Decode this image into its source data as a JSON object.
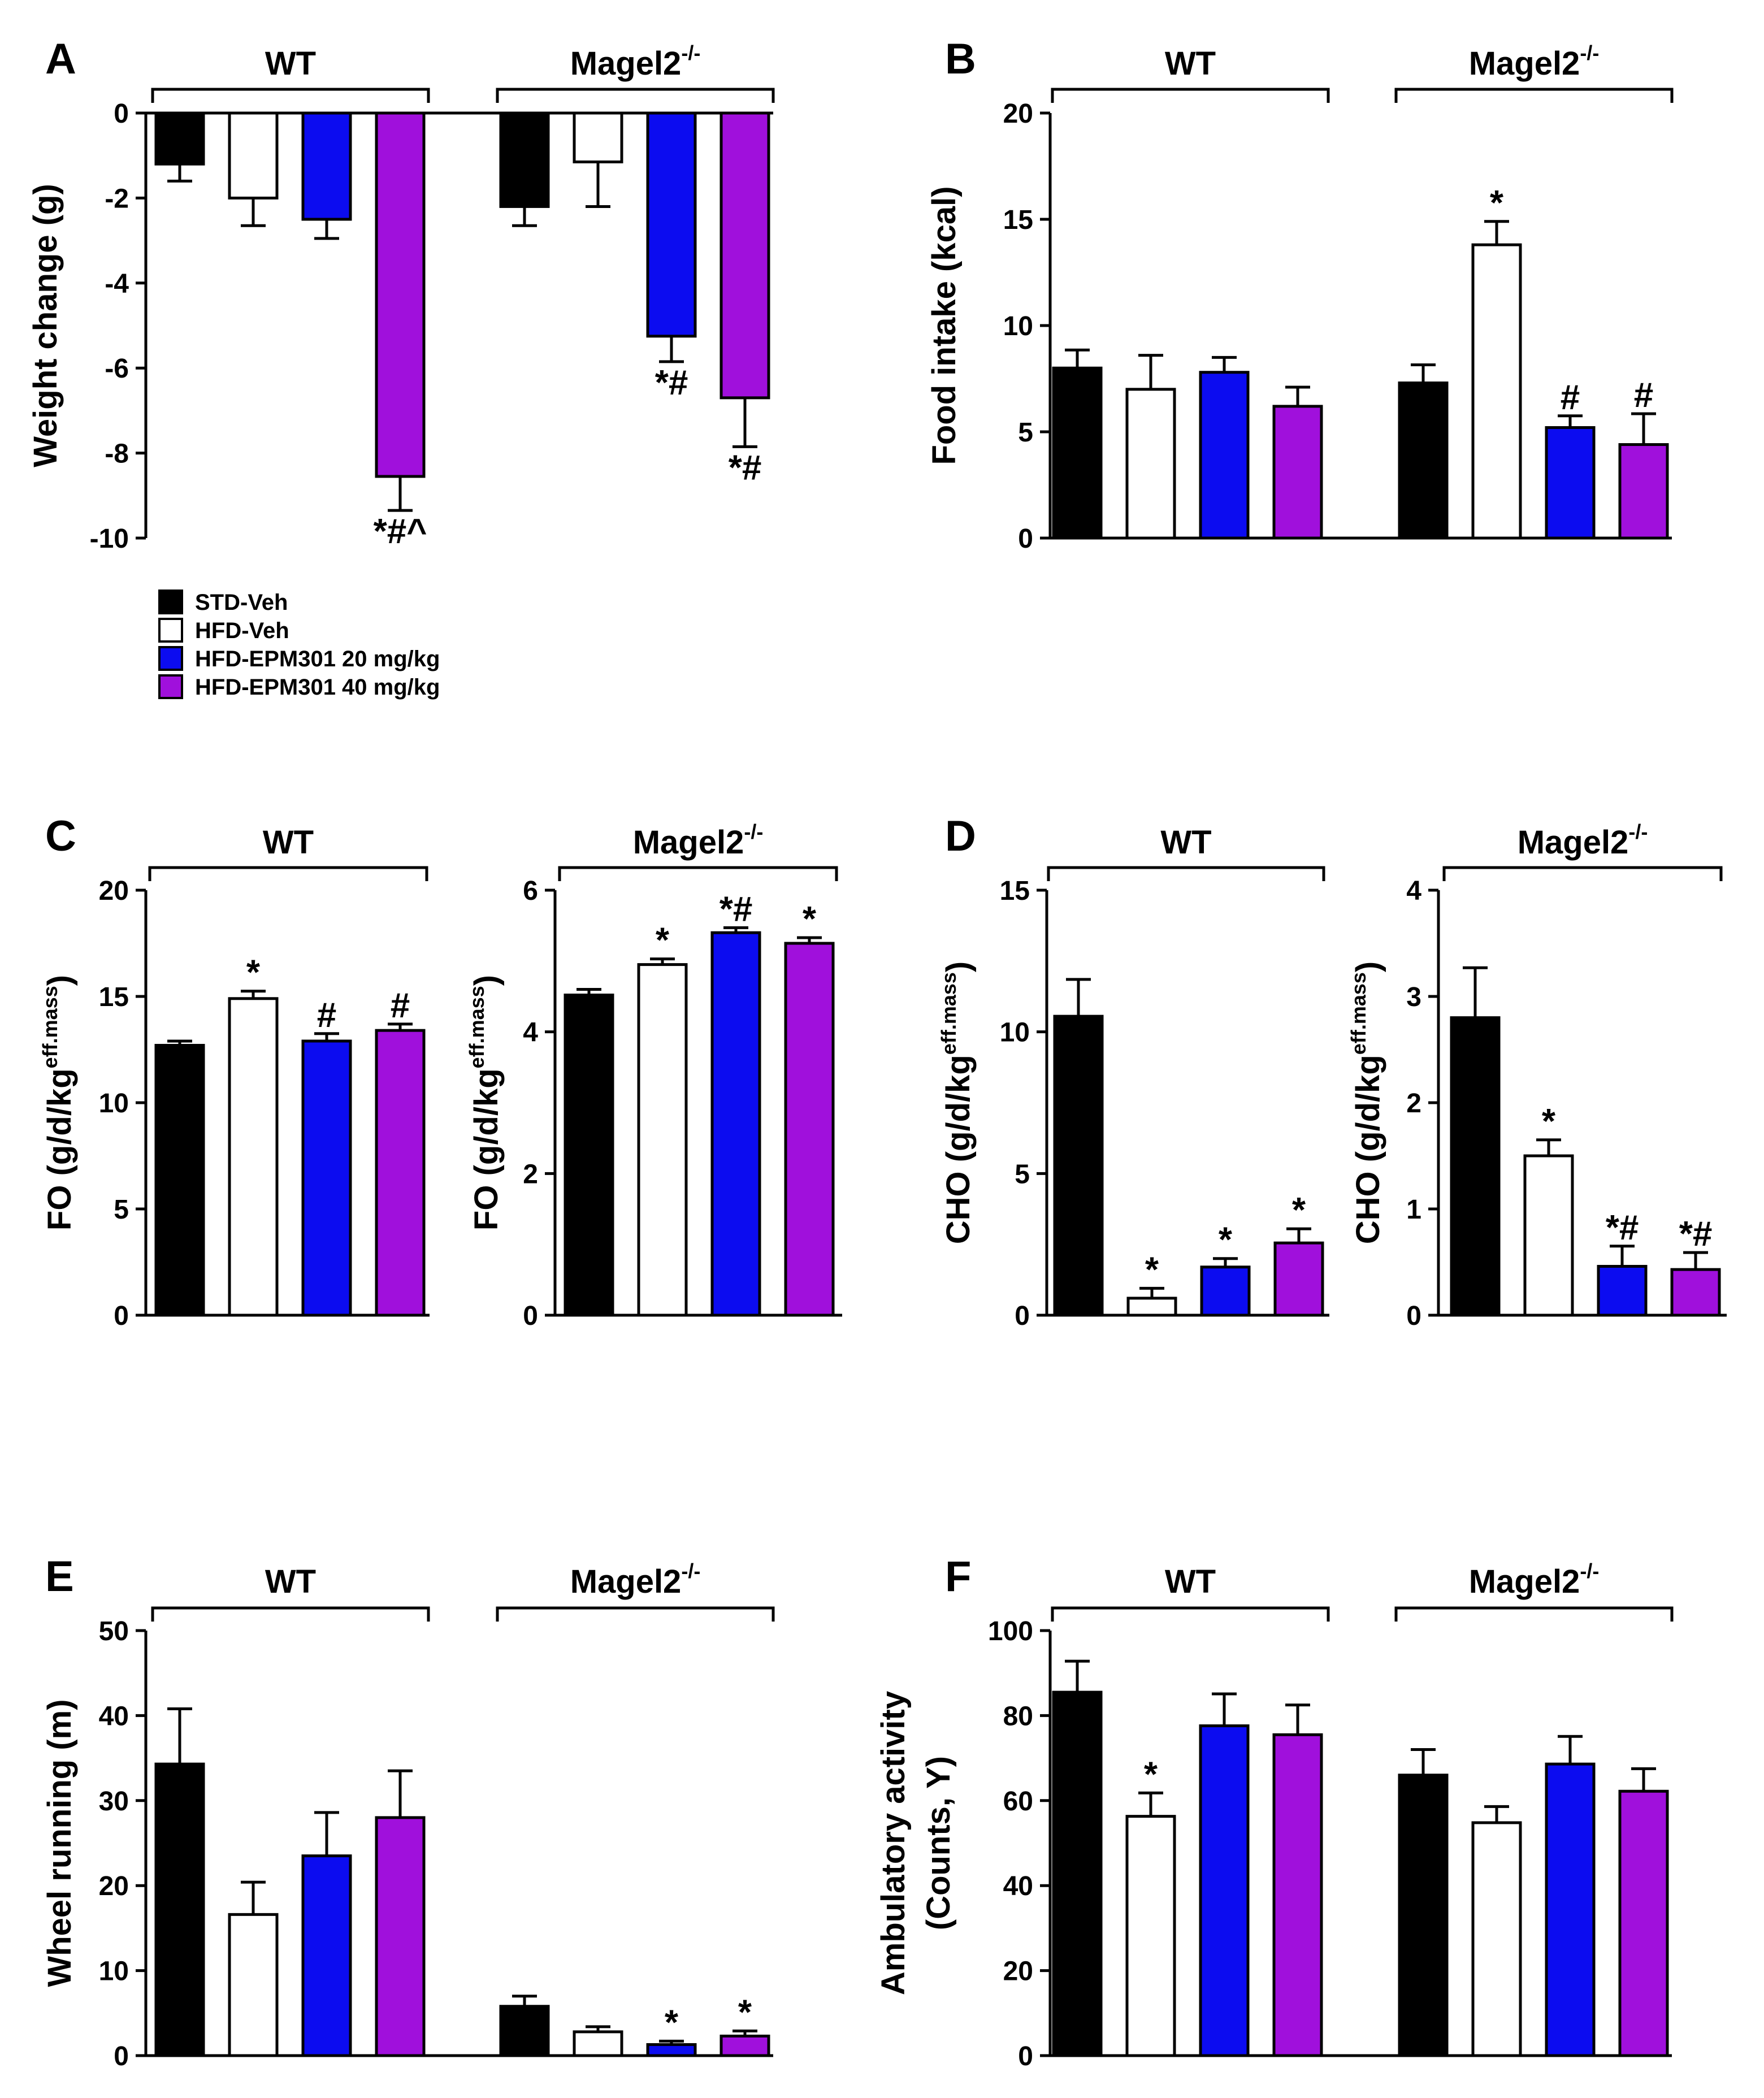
{
  "colors": {
    "black": "#000000",
    "white": "#ffffff",
    "blue": "#0c0cf0",
    "purple": "#a010dc"
  },
  "legend": [
    {
      "label": "STD-Veh",
      "color": "#000000"
    },
    {
      "label": "HFD-Veh",
      "color": "#ffffff"
    },
    {
      "label": "HFD-EPM301 20 mg/kg",
      "color": "#0c0cf0"
    },
    {
      "label": "HFD-EPM301 40 mg/kg",
      "color": "#a010dc"
    }
  ],
  "chart_data": [
    {
      "panel": "A",
      "type": "bar",
      "ylabel": "Weight change (g)",
      "ylim": [
        -10,
        0
      ],
      "yticks": [
        "0",
        "-2",
        "-4",
        "-6",
        "-8",
        "-10"
      ],
      "groups": [
        {
          "name": "WT",
          "sup": ""
        },
        {
          "name": "Magel2",
          "sup": "-/-"
        }
      ],
      "series": [
        {
          "name": "STD-Veh",
          "color": "#000000",
          "values": [
            -1.2,
            -2.2
          ],
          "errors": [
            0.4,
            0.45
          ],
          "annot": [
            "",
            ""
          ]
        },
        {
          "name": "HFD-Veh",
          "color": "#ffffff",
          "values": [
            -2.0,
            -1.15
          ],
          "errors": [
            0.65,
            1.05
          ],
          "annot": [
            "",
            ""
          ]
        },
        {
          "name": "HFD-EPM301 20 mg/kg",
          "color": "#0c0cf0",
          "values": [
            -2.5,
            -5.25
          ],
          "errors": [
            0.45,
            0.6
          ],
          "annot": [
            "",
            "*#"
          ]
        },
        {
          "name": "HFD-EPM301 40 mg/kg",
          "color": "#a010dc",
          "values": [
            -8.55,
            -6.7
          ],
          "errors": [
            0.8,
            1.15
          ],
          "annot": [
            "*#^",
            "*#"
          ]
        }
      ]
    },
    {
      "panel": "B",
      "type": "bar",
      "ylabel": "Food intake (kcal)",
      "ylim": [
        0,
        20
      ],
      "yticks": [
        "0",
        "5",
        "10",
        "15",
        "20"
      ],
      "groups": [
        {
          "name": "WT",
          "sup": ""
        },
        {
          "name": "Magel2",
          "sup": "-/-"
        }
      ],
      "series": [
        {
          "name": "STD-Veh",
          "color": "#000000",
          "values": [
            8.0,
            7.3
          ],
          "errors": [
            0.85,
            0.85
          ],
          "annot": [
            "",
            ""
          ]
        },
        {
          "name": "HFD-Veh",
          "color": "#ffffff",
          "values": [
            7.0,
            13.8
          ],
          "errors": [
            1.6,
            1.1
          ],
          "annot": [
            "",
            "*"
          ]
        },
        {
          "name": "HFD-EPM301 20 mg/kg",
          "color": "#0c0cf0",
          "values": [
            7.8,
            5.2
          ],
          "errors": [
            0.7,
            0.55
          ],
          "annot": [
            "",
            "#"
          ]
        },
        {
          "name": "HFD-EPM301 40 mg/kg",
          "color": "#a010dc",
          "values": [
            6.2,
            4.4
          ],
          "errors": [
            0.9,
            1.45
          ],
          "annot": [
            "",
            "#"
          ]
        }
      ]
    },
    {
      "panel": "C",
      "type": "bar",
      "ylabel": "FO (g/d/kg",
      "ylabel_sup": "eff.mass",
      "ylabel_end": ")",
      "ylim": [
        0,
        20
      ],
      "yticks": [
        "0",
        "5",
        "10",
        "15",
        "20"
      ],
      "groups": [
        {
          "name": "WT",
          "sup": ""
        }
      ],
      "series": [
        {
          "name": "STD-Veh",
          "color": "#000000",
          "values": [
            12.7
          ],
          "errors": [
            0.2
          ],
          "annot": [
            ""
          ]
        },
        {
          "name": "HFD-Veh",
          "color": "#ffffff",
          "values": [
            14.9
          ],
          "errors": [
            0.35
          ],
          "annot": [
            "*"
          ]
        },
        {
          "name": "HFD-EPM301 20 mg/kg",
          "color": "#0c0cf0",
          "values": [
            12.9
          ],
          "errors": [
            0.35
          ],
          "annot": [
            "#"
          ]
        },
        {
          "name": "HFD-EPM301 40 mg/kg",
          "color": "#a010dc",
          "values": [
            13.4
          ],
          "errors": [
            0.3
          ],
          "annot": [
            "#"
          ]
        }
      ]
    },
    {
      "panel": "",
      "type": "bar",
      "ylabel": "FO (g/d/kg",
      "ylabel_sup": "eff.mass",
      "ylabel_end": ")",
      "ylim": [
        0,
        6
      ],
      "yticks": [
        "0",
        "2",
        "4",
        "6"
      ],
      "groups": [
        {
          "name": "Magel2",
          "sup": "-/-"
        }
      ],
      "series": [
        {
          "name": "STD-Veh",
          "color": "#000000",
          "values": [
            4.52
          ],
          "errors": [
            0.08
          ],
          "annot": [
            ""
          ]
        },
        {
          "name": "HFD-Veh",
          "color": "#ffffff",
          "values": [
            4.95
          ],
          "errors": [
            0.08
          ],
          "annot": [
            "*"
          ]
        },
        {
          "name": "HFD-EPM301 20 mg/kg",
          "color": "#0c0cf0",
          "values": [
            5.4
          ],
          "errors": [
            0.07
          ],
          "annot": [
            "*#"
          ]
        },
        {
          "name": "HFD-EPM301 40 mg/kg",
          "color": "#a010dc",
          "values": [
            5.25
          ],
          "errors": [
            0.08
          ],
          "annot": [
            "*"
          ]
        }
      ]
    },
    {
      "panel": "D",
      "type": "bar",
      "ylabel": "CHO (g/d/kg",
      "ylabel_sup": "eff.mass",
      "ylabel_end": ")",
      "ylim": [
        0,
        15
      ],
      "yticks": [
        "0",
        "5",
        "10",
        "15"
      ],
      "groups": [
        {
          "name": "WT",
          "sup": ""
        }
      ],
      "series": [
        {
          "name": "STD-Veh",
          "color": "#000000",
          "values": [
            10.55
          ],
          "errors": [
            1.3
          ],
          "annot": [
            ""
          ]
        },
        {
          "name": "HFD-Veh",
          "color": "#ffffff",
          "values": [
            0.6
          ],
          "errors": [
            0.35
          ],
          "annot": [
            "*"
          ]
        },
        {
          "name": "HFD-EPM301 20 mg/kg",
          "color": "#0c0cf0",
          "values": [
            1.7
          ],
          "errors": [
            0.3
          ],
          "annot": [
            "*"
          ]
        },
        {
          "name": "HFD-EPM301 40 mg/kg",
          "color": "#a010dc",
          "values": [
            2.55
          ],
          "errors": [
            0.5
          ],
          "annot": [
            "*"
          ]
        }
      ]
    },
    {
      "panel": "",
      "type": "bar",
      "ylabel": "CHO (g/d/kg",
      "ylabel_sup": "eff.mass",
      "ylabel_end": ")",
      "ylim": [
        0,
        4
      ],
      "yticks": [
        "0",
        "1",
        "2",
        "3",
        "4"
      ],
      "groups": [
        {
          "name": "Magel2",
          "sup": "-/-"
        }
      ],
      "series": [
        {
          "name": "STD-Veh",
          "color": "#000000",
          "values": [
            2.8
          ],
          "errors": [
            0.47
          ],
          "annot": [
            ""
          ]
        },
        {
          "name": "HFD-Veh",
          "color": "#ffffff",
          "values": [
            1.5
          ],
          "errors": [
            0.15
          ],
          "annot": [
            "*"
          ]
        },
        {
          "name": "HFD-EPM301 20 mg/kg",
          "color": "#0c0cf0",
          "values": [
            0.46
          ],
          "errors": [
            0.19
          ],
          "annot": [
            "*#"
          ]
        },
        {
          "name": "HFD-EPM301 40 mg/kg",
          "color": "#a010dc",
          "values": [
            0.43
          ],
          "errors": [
            0.16
          ],
          "annot": [
            "*#"
          ]
        }
      ]
    },
    {
      "panel": "E",
      "type": "bar",
      "ylabel": "Wheel running (m)",
      "ylim": [
        0,
        50
      ],
      "yticks": [
        "0",
        "10",
        "20",
        "30",
        "40",
        "50"
      ],
      "groups": [
        {
          "name": "WT",
          "sup": ""
        },
        {
          "name": "Magel2",
          "sup": "-/-"
        }
      ],
      "series": [
        {
          "name": "STD-Veh",
          "color": "#000000",
          "values": [
            34.3,
            5.8
          ],
          "errors": [
            6.5,
            1.2
          ],
          "annot": [
            "",
            ""
          ]
        },
        {
          "name": "HFD-Veh",
          "color": "#ffffff",
          "values": [
            16.6,
            2.8
          ],
          "errors": [
            3.8,
            0.6
          ],
          "annot": [
            "",
            ""
          ]
        },
        {
          "name": "HFD-EPM301 20 mg/kg",
          "color": "#0c0cf0",
          "values": [
            23.5,
            1.3
          ],
          "errors": [
            5.1,
            0.4
          ],
          "annot": [
            "",
            "*"
          ]
        },
        {
          "name": "HFD-EPM301 40 mg/kg",
          "color": "#a010dc",
          "values": [
            28.0,
            2.3
          ],
          "errors": [
            5.5,
            0.6
          ],
          "annot": [
            "",
            "*"
          ]
        }
      ]
    },
    {
      "panel": "F",
      "type": "bar",
      "ylabel": "Ambulatory activity",
      "ylabel2": "(Counts, Y)",
      "ylim": [
        0,
        100
      ],
      "yticks": [
        "0",
        "20",
        "40",
        "60",
        "80",
        "100"
      ],
      "groups": [
        {
          "name": "WT",
          "sup": ""
        },
        {
          "name": "Magel2",
          "sup": "-/-"
        }
      ],
      "series": [
        {
          "name": "STD-Veh",
          "color": "#000000",
          "values": [
            85.5,
            66.0
          ],
          "errors": [
            7.3,
            6.0
          ],
          "annot": [
            "",
            ""
          ]
        },
        {
          "name": "HFD-Veh",
          "color": "#ffffff",
          "values": [
            56.3,
            54.8
          ],
          "errors": [
            5.5,
            3.8
          ],
          "annot": [
            "*",
            ""
          ]
        },
        {
          "name": "HFD-EPM301 20 mg/kg",
          "color": "#0c0cf0",
          "values": [
            77.6,
            68.6
          ],
          "errors": [
            7.5,
            6.5
          ],
          "annot": [
            "",
            ""
          ]
        },
        {
          "name": "HFD-EPM301 40 mg/kg",
          "color": "#a010dc",
          "values": [
            75.5,
            62.2
          ],
          "errors": [
            7.0,
            5.3
          ],
          "annot": [
            "",
            ""
          ]
        }
      ]
    }
  ]
}
